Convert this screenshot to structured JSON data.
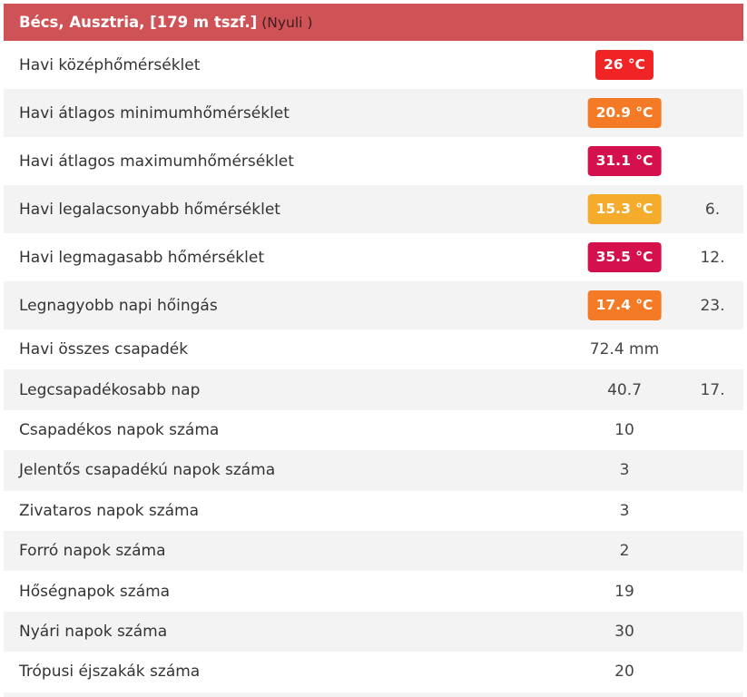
{
  "header": {
    "place": "Bécs, Ausztria, [179 m tszf.]",
    "sub": "(Nyuli )"
  },
  "rows": [
    {
      "label": "Havi középhőmérséklet",
      "value": "26 °C",
      "day": "",
      "color": "#f02424"
    },
    {
      "label": "Havi átlagos minimumhőmérséklet",
      "value": "20.9 °C",
      "day": "",
      "color": "#f57a25"
    },
    {
      "label": "Havi átlagos maximumhőmérséklet",
      "value": "31.1 °C",
      "day": "",
      "color": "#d4114d"
    },
    {
      "label": "Havi legalacsonyabb hőmérséklet",
      "value": "15.3 °C",
      "day": "6.",
      "color": "#f5ab2c"
    },
    {
      "label": "Havi legmagasabb hőmérséklet",
      "value": "35.5 °C",
      "day": "12.",
      "color": "#d4114d"
    },
    {
      "label": "Legnagyobb napi hőingás",
      "value": "17.4 °C",
      "day": "23.",
      "color": "#f57a25"
    },
    {
      "label": "Havi összes csapadék",
      "value": "72.4 mm",
      "day": ""
    },
    {
      "label": "Legcsapadékosabb nap",
      "value": "40.7",
      "day": "17."
    },
    {
      "label": "Csapadékos napok száma",
      "value": "10",
      "day": ""
    },
    {
      "label": "Jelentős csapadékú napok száma",
      "value": "3",
      "day": ""
    },
    {
      "label": "Zivataros napok száma",
      "value": "3",
      "day": ""
    },
    {
      "label": "Forró napok száma",
      "value": "2",
      "day": ""
    },
    {
      "label": "Hőségnapok száma",
      "value": "19",
      "day": ""
    },
    {
      "label": "Nyári napok száma",
      "value": "30",
      "day": ""
    },
    {
      "label": "Trópusi éjszakák száma",
      "value": "20",
      "day": ""
    }
  ]
}
